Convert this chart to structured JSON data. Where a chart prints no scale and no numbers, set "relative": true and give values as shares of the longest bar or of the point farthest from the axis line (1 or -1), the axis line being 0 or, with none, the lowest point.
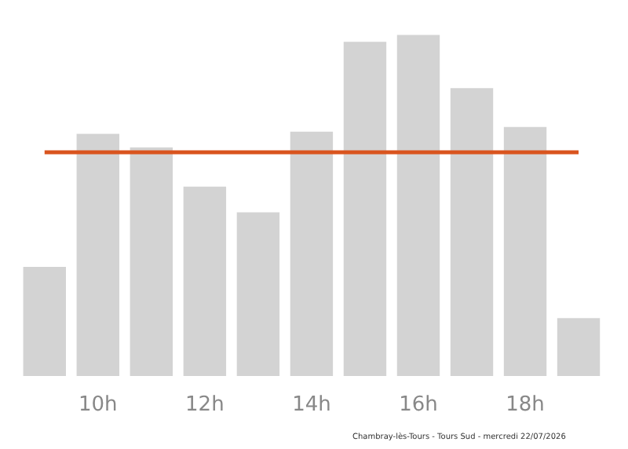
{
  "chart_data": {
    "type": "bar",
    "relative": true,
    "categories": [
      null,
      "10h",
      null,
      "12h",
      null,
      "14h",
      null,
      "16h",
      null,
      "18h",
      null
    ],
    "values": [
      0.32,
      0.71,
      0.67,
      0.555,
      0.48,
      0.716,
      0.98,
      1,
      0.844,
      0.73,
      0.17
    ],
    "color": "#d3d3d3",
    "ref_lines": [
      {
        "axis": "y",
        "value": 0.656,
        "color": "#d9541e"
      }
    ],
    "annotations": [
      "Chambray-lès-Tours - Tours Sud - mercredi 22/07/2026"
    ]
  }
}
